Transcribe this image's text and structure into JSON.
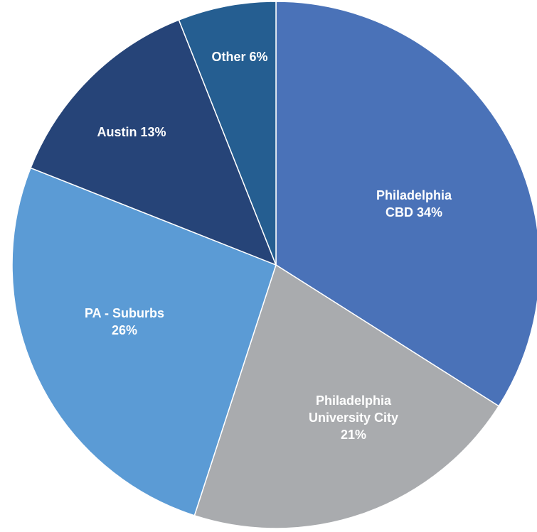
{
  "chart_data": {
    "type": "pie",
    "categories": [
      "Philadelphia CBD",
      "Philadelphia University City",
      "PA - Suburbs",
      "Austin",
      "Other"
    ],
    "values": [
      34,
      21,
      26,
      13,
      6
    ],
    "value_labels": [
      "34%",
      "21%",
      "26%",
      "13%",
      "6%"
    ],
    "colors": [
      "#4a72b8",
      "#a9abae",
      "#5b9bd5",
      "#264478",
      "#255e91"
    ]
  }
}
